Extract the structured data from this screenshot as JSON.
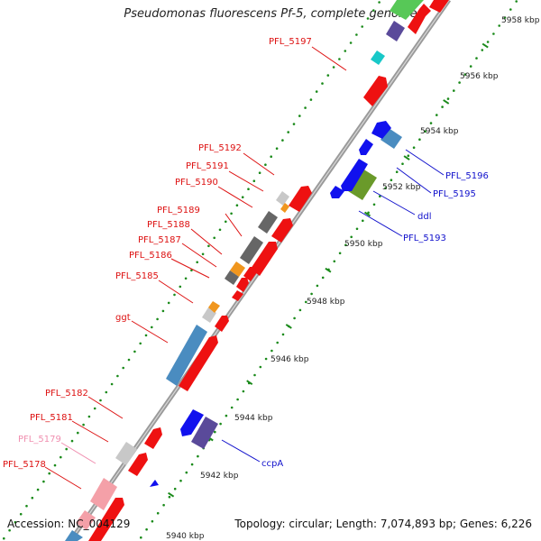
{
  "title": "Pseudomonas fluorescens Pf-5, complete genome",
  "accession_text": "Accession: NC_004129",
  "topology_text": "Topology: circular; Length: 7,074,893 bp; Genes: 6,226",
  "kbp_ticks": [
    {
      "label": "5958 kbp"
    },
    {
      "label": "5956 kbp"
    },
    {
      "label": "5954 kbp"
    },
    {
      "label": "5952 kbp"
    },
    {
      "label": "5950 kbp"
    },
    {
      "label": "5948 kbp"
    },
    {
      "label": "5946 kbp"
    },
    {
      "label": "5944 kbp"
    },
    {
      "label": "5942 kbp"
    },
    {
      "label": "5940 kbp"
    }
  ],
  "gene_labels_left": [
    {
      "text": "PFL_5197",
      "color": "#dd1111"
    },
    {
      "text": "PFL_5192",
      "color": "#dd1111"
    },
    {
      "text": "PFL_5191",
      "color": "#dd1111"
    },
    {
      "text": "PFL_5190",
      "color": "#dd1111"
    },
    {
      "text": "PFL_5189",
      "color": "#dd1111"
    },
    {
      "text": "PFL_5188",
      "color": "#dd1111"
    },
    {
      "text": "PFL_5187",
      "color": "#dd1111"
    },
    {
      "text": "PFL_5186",
      "color": "#dd1111"
    },
    {
      "text": "PFL_5185",
      "color": "#dd1111"
    },
    {
      "text": "ggt",
      "color": "#dd1111"
    },
    {
      "text": "PFL_5182",
      "color": "#dd1111"
    },
    {
      "text": "PFL_5181",
      "color": "#dd1111"
    },
    {
      "text": "PFL_5179",
      "color": "#f08fb0"
    },
    {
      "text": "PFL_5178",
      "color": "#dd1111"
    }
  ],
  "gene_labels_right": [
    {
      "text": "PFL_5196",
      "color": "#1111cc"
    },
    {
      "text": "PFL_5195",
      "color": "#1111cc"
    },
    {
      "text": "ddl",
      "color": "#1111cc"
    },
    {
      "text": "PFL_5193",
      "color": "#1111cc"
    },
    {
      "text": "ccpA",
      "color": "#1111cc"
    }
  ],
  "colors": {
    "forward_gene": "#ee1111",
    "reverse_gene": "#1111ee",
    "backbone": "#888888",
    "tick": "#1a8a1a",
    "cog_blue": "#4a8cc0",
    "cog_grey": "#666666",
    "cog_lightgrey": "#c8c8c8",
    "cog_orange": "#f0961e",
    "cog_olive": "#6a9a2a",
    "cog_cyan": "#18c8c8",
    "cog_indigo": "#5a4a9a",
    "cog_pink": "#f4a0a8"
  }
}
